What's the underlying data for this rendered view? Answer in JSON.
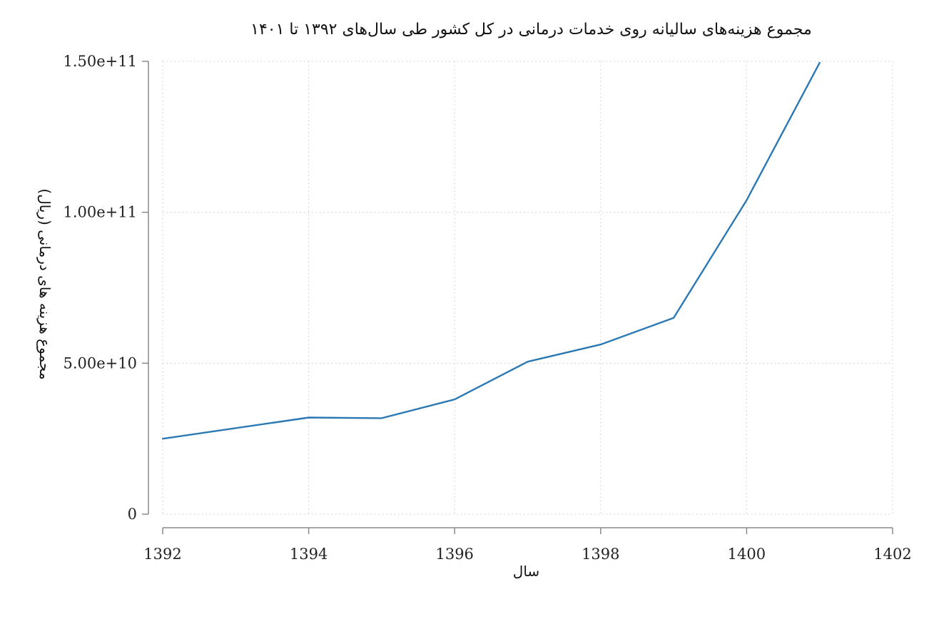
{
  "chart_data": {
    "type": "line",
    "title": "مجموع هزینه‌های سالیانه روی خدمات درمانی در کل کشور طی سال‌های ۱۳۹۲ تا ۱۴۰۱",
    "xlabel": "سال",
    "ylabel": "مجموع هزینه های درمانی (ریال)",
    "x": [
      1392,
      1394,
      1395,
      1396,
      1397,
      1398,
      1399,
      1400,
      1401
    ],
    "series": [
      {
        "values": [
          25000000000,
          32000000000,
          31800000000,
          38000000000,
          50500000000,
          56200000000,
          65000000000,
          104000000000,
          149500000000
        ]
      }
    ],
    "xlim": [
      1392,
      1402
    ],
    "ylim": [
      0,
      150000000000
    ],
    "xticks": [
      1392,
      1394,
      1396,
      1398,
      1400,
      1402
    ],
    "xtick_labels": [
      "1392",
      "1394",
      "1396",
      "1398",
      "1400",
      "1402"
    ],
    "yticks": [
      0,
      50000000000,
      100000000000,
      150000000000
    ],
    "ytick_labels": [
      "0",
      "5.00e+10",
      "1.00e+11",
      "1.50e+11"
    ],
    "grid": true,
    "line_color": "#2a78b4"
  }
}
